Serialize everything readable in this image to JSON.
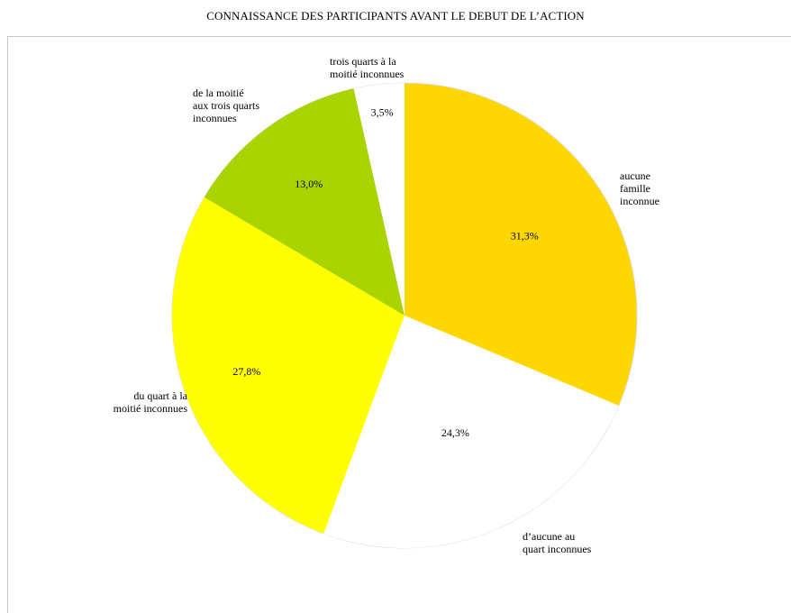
{
  "title": "CONNAISSANCE DES PARTICIPANTS AVANT LE DEBUT DE L’ACTION",
  "chart_data": {
    "type": "pie",
    "title": "CONNAISSANCE DES PARTICIPANTS AVANT LE DEBUT DE L’ACTION",
    "slices": [
      {
        "label": "aucune\nfamille\ninconnue",
        "value": 31.3,
        "value_label": "31,3%",
        "color": "#FFD700"
      },
      {
        "label": "d’aucune au\nquart   inconnues",
        "value": 24.3,
        "value_label": "24,3%",
        "color": "#FFFFFF"
      },
      {
        "label": "du quart à la\nmoitié inconnues",
        "value": 27.8,
        "value_label": "27,8%",
        "color": "#FFFF00"
      },
      {
        "label": "de la moitié\naux trois quarts\ninconnues",
        "value": 13.0,
        "value_label": "13,0%",
        "color": "#AAD400"
      },
      {
        "label": "trois quarts à la\nmoitié inconnues",
        "value": 3.5,
        "value_label": "3,5%",
        "color": "#FFFFFF"
      }
    ]
  }
}
